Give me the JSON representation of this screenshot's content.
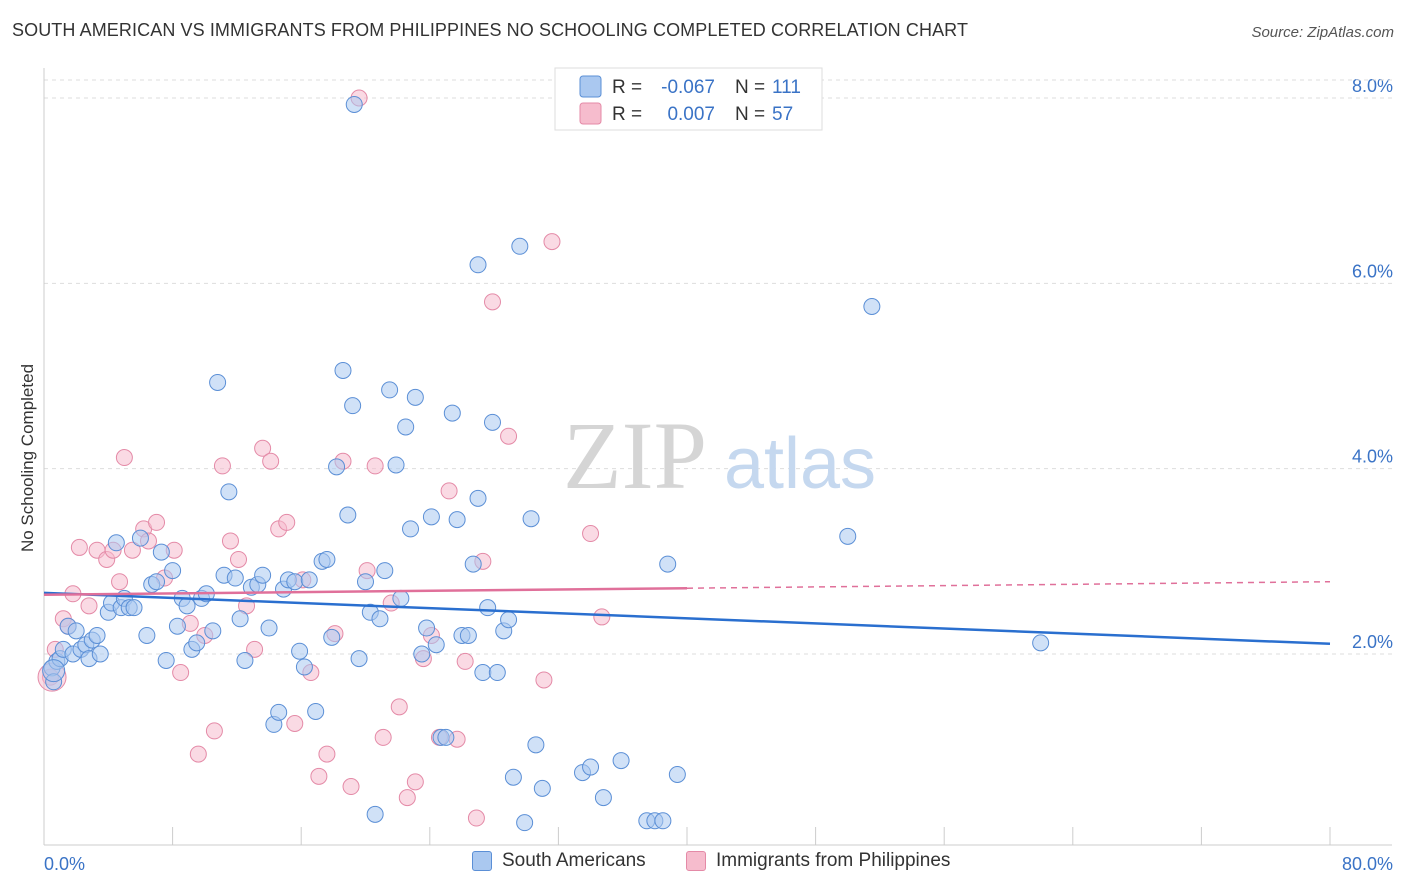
{
  "chart_data": {
    "type": "scatter",
    "title": "SOUTH AMERICAN VS IMMIGRANTS FROM PHILIPPINES NO SCHOOLING COMPLETED CORRELATION CHART",
    "source": "Source: ZipAtlas.com",
    "xlabel": "",
    "ylabel": "No Schooling Completed",
    "xlim": [
      0,
      80
    ],
    "ylim": [
      0,
      8.2
    ],
    "x_tick_labels": [
      "0.0%",
      "80.0%"
    ],
    "y_ticks": [
      2,
      4,
      6,
      8
    ],
    "y_tick_labels": [
      "2.0%",
      "4.0%",
      "6.0%",
      "8.0%"
    ],
    "grid": true,
    "watermark": {
      "zip": "ZIP",
      "atlas": "atlas"
    },
    "colors": {
      "blue_fill": "#aac8f0",
      "blue_stroke": "#5b8fd6",
      "blue_line": "#2a6fcf",
      "pink_fill": "#f6bccd",
      "pink_stroke": "#e48aa7",
      "pink_line": "#e0709a",
      "axis_label": "#3a73c6",
      "grid": "#dddddd"
    },
    "legend_top": [
      {
        "r_label": "R =",
        "r_value": "-0.067",
        "n_label": "N =",
        "n_value": "111"
      },
      {
        "r_label": "R =",
        "r_value": "0.007",
        "n_label": "N =",
        "n_value": "57"
      }
    ],
    "series": [
      {
        "name": "South Americans",
        "trend": {
          "x0": 0,
          "y0": 2.66,
          "x1": 80,
          "y1": 2.11
        },
        "points": [
          [
            0.5,
            1.85
          ],
          [
            0.6,
            1.7
          ],
          [
            0.8,
            1.92
          ],
          [
            1.0,
            1.95
          ],
          [
            1.2,
            2.05
          ],
          [
            1.5,
            2.3
          ],
          [
            1.8,
            2.0
          ],
          [
            2.0,
            2.25
          ],
          [
            2.3,
            2.05
          ],
          [
            2.6,
            2.1
          ],
          [
            2.8,
            1.95
          ],
          [
            3.0,
            2.15
          ],
          [
            3.3,
            2.2
          ],
          [
            3.5,
            2.0
          ],
          [
            4.0,
            2.45
          ],
          [
            4.2,
            2.55
          ],
          [
            4.5,
            3.2
          ],
          [
            4.8,
            2.5
          ],
          [
            5.0,
            2.6
          ],
          [
            5.3,
            2.5
          ],
          [
            5.6,
            2.5
          ],
          [
            6.0,
            3.25
          ],
          [
            6.4,
            2.2
          ],
          [
            6.7,
            2.75
          ],
          [
            7.0,
            2.78
          ],
          [
            7.3,
            3.1
          ],
          [
            7.6,
            1.93
          ],
          [
            8.0,
            2.9
          ],
          [
            8.3,
            2.3
          ],
          [
            8.6,
            2.6
          ],
          [
            8.9,
            2.52
          ],
          [
            9.2,
            2.05
          ],
          [
            9.5,
            2.12
          ],
          [
            9.8,
            2.6
          ],
          [
            10.1,
            2.65
          ],
          [
            10.5,
            2.25
          ],
          [
            10.8,
            4.93
          ],
          [
            11.2,
            2.85
          ],
          [
            11.5,
            3.75
          ],
          [
            11.9,
            2.82
          ],
          [
            12.2,
            2.38
          ],
          [
            12.5,
            1.93
          ],
          [
            12.9,
            2.72
          ],
          [
            13.3,
            2.75
          ],
          [
            13.6,
            2.85
          ],
          [
            14.0,
            2.28
          ],
          [
            14.3,
            1.24
          ],
          [
            14.6,
            1.37
          ],
          [
            14.9,
            2.7
          ],
          [
            15.2,
            2.8
          ],
          [
            15.6,
            2.78
          ],
          [
            15.9,
            2.03
          ],
          [
            16.2,
            1.86
          ],
          [
            16.5,
            2.8
          ],
          [
            16.9,
            1.38
          ],
          [
            17.3,
            3.0
          ],
          [
            17.6,
            3.02
          ],
          [
            17.9,
            2.18
          ],
          [
            18.2,
            4.02
          ],
          [
            18.6,
            5.06
          ],
          [
            18.9,
            3.5
          ],
          [
            19.2,
            4.68
          ],
          [
            19.3,
            7.93
          ],
          [
            19.6,
            1.95
          ],
          [
            20.0,
            2.78
          ],
          [
            20.3,
            2.45
          ],
          [
            20.6,
            0.27
          ],
          [
            20.9,
            2.38
          ],
          [
            21.2,
            2.9
          ],
          [
            21.5,
            4.85
          ],
          [
            21.9,
            4.04
          ],
          [
            22.2,
            2.6
          ],
          [
            22.5,
            4.45
          ],
          [
            22.8,
            3.35
          ],
          [
            23.1,
            4.77
          ],
          [
            23.5,
            2.0
          ],
          [
            23.8,
            2.28
          ],
          [
            24.1,
            3.48
          ],
          [
            24.4,
            2.1
          ],
          [
            24.7,
            1.1
          ],
          [
            25.0,
            1.1
          ],
          [
            25.4,
            4.6
          ],
          [
            25.7,
            3.45
          ],
          [
            26.0,
            2.2
          ],
          [
            26.4,
            2.2
          ],
          [
            26.7,
            2.97
          ],
          [
            27.0,
            3.68
          ],
          [
            27.3,
            1.8
          ],
          [
            27.6,
            2.5
          ],
          [
            27.9,
            4.5
          ],
          [
            28.2,
            1.8
          ],
          [
            28.6,
            2.25
          ],
          [
            28.9,
            2.37
          ],
          [
            29.2,
            0.67
          ],
          [
            29.6,
            6.4
          ],
          [
            29.9,
            0.18
          ],
          [
            30.3,
            3.46
          ],
          [
            30.6,
            1.02
          ],
          [
            31.0,
            0.55
          ],
          [
            33.5,
            0.72
          ],
          [
            34.0,
            0.78
          ],
          [
            34.8,
            0.45
          ],
          [
            35.9,
            0.85
          ],
          [
            37.5,
            0.2
          ],
          [
            38.0,
            0.2
          ],
          [
            38.5,
            0.2
          ],
          [
            39.4,
            0.7
          ],
          [
            38.8,
            2.97
          ],
          [
            51.5,
            5.75
          ],
          [
            50.0,
            3.27
          ],
          [
            27.0,
            6.2
          ],
          [
            62.0,
            2.12
          ]
        ]
      },
      {
        "name": "Immigrants from Philippines",
        "trend": {
          "x0": 0,
          "y0": 2.64,
          "x1": 40,
          "y1": 2.71,
          "dash_x1": 80,
          "dash_y1": 2.78
        },
        "points": [
          [
            0.4,
            1.75
          ],
          [
            0.7,
            2.05
          ],
          [
            1.2,
            2.38
          ],
          [
            1.5,
            2.3
          ],
          [
            1.8,
            2.65
          ],
          [
            2.2,
            3.15
          ],
          [
            2.8,
            2.52
          ],
          [
            3.3,
            3.12
          ],
          [
            3.9,
            3.02
          ],
          [
            4.3,
            3.12
          ],
          [
            4.7,
            2.78
          ],
          [
            5.0,
            4.12
          ],
          [
            5.5,
            3.12
          ],
          [
            6.2,
            3.35
          ],
          [
            6.5,
            3.22
          ],
          [
            7.0,
            3.42
          ],
          [
            7.5,
            2.82
          ],
          [
            8.1,
            3.12
          ],
          [
            8.5,
            1.8
          ],
          [
            9.1,
            2.33
          ],
          [
            9.6,
            0.92
          ],
          [
            10.0,
            2.2
          ],
          [
            10.6,
            1.17
          ],
          [
            11.1,
            4.03
          ],
          [
            11.6,
            3.22
          ],
          [
            12.1,
            3.02
          ],
          [
            12.6,
            2.52
          ],
          [
            13.1,
            2.05
          ],
          [
            13.6,
            4.22
          ],
          [
            14.1,
            4.08
          ],
          [
            14.6,
            3.35
          ],
          [
            15.1,
            3.42
          ],
          [
            15.6,
            1.25
          ],
          [
            16.1,
            2.8
          ],
          [
            16.6,
            1.8
          ],
          [
            17.1,
            0.68
          ],
          [
            17.6,
            0.92
          ],
          [
            18.1,
            2.22
          ],
          [
            18.6,
            4.08
          ],
          [
            19.1,
            0.57
          ],
          [
            19.6,
            8.0
          ],
          [
            20.1,
            2.9
          ],
          [
            20.6,
            4.03
          ],
          [
            21.1,
            1.1
          ],
          [
            21.6,
            2.55
          ],
          [
            22.1,
            1.43
          ],
          [
            22.6,
            0.45
          ],
          [
            23.1,
            0.62
          ],
          [
            23.6,
            1.95
          ],
          [
            24.1,
            2.2
          ],
          [
            24.6,
            1.1
          ],
          [
            25.2,
            3.76
          ],
          [
            25.7,
            1.08
          ],
          [
            26.2,
            1.92
          ],
          [
            26.9,
            0.23
          ],
          [
            27.3,
            3.0
          ],
          [
            27.9,
            5.8
          ],
          [
            28.9,
            4.35
          ],
          [
            31.1,
            1.72
          ],
          [
            31.6,
            6.45
          ],
          [
            34.0,
            3.3
          ],
          [
            34.7,
            2.4
          ]
        ]
      }
    ]
  }
}
